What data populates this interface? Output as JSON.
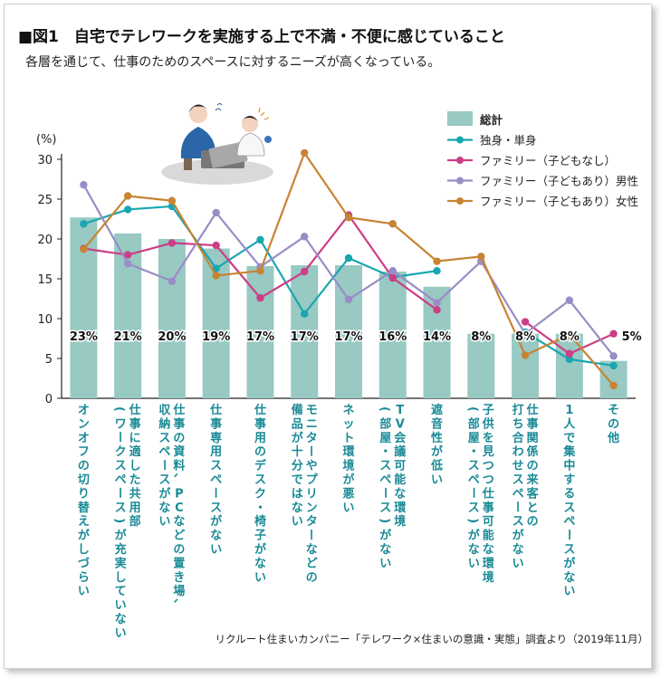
{
  "header": {
    "title": "■図1　自宅でテレワークを実施する上で不満・不便に感じていること",
    "subtitle": "各層を通じて、仕事のためのスペースに対するニーズが高くなっている。",
    "source": "リクルート住まいカンパニー「テレワーク×住まいの意識・実態」調査より（2019年11月）"
  },
  "chart_data": {
    "type": "bar",
    "title": "■図1　自宅でテレワークを実施する上で不満・不便に感じていること",
    "ylabel": "(%)",
    "ylim": [
      0,
      30
    ],
    "yticks": [
      "0",
      "5",
      "10",
      "15",
      "20",
      "25",
      "30"
    ],
    "grid": false,
    "legend_position": "top-right",
    "categories": [
      "オンオフの切り替えがしづらい",
      "仕事に適した共用部\n(ワークスペース)が充実していない",
      "仕事の資料、PCなどの置き場、\n収納スペースがない",
      "仕事専用スペースがない",
      "仕事用のデスク・椅子がない",
      "モニターやプリンターなどの\n備品が十分ではない",
      "ネット環境が悪い",
      "TV会議可能な環境\n(部屋・スペース)がない",
      "遮音性が低い",
      "子供を見つつ仕事可能な環境\n(部屋・スペース)がない",
      "仕事関係の来客との\n打ち合わせスペースがない",
      "1人で集中するスペースがない",
      "その他"
    ],
    "bar_labels": [
      "23%",
      "21%",
      "20%",
      "19%",
      "17%",
      "17%",
      "17%",
      "16%",
      "14%",
      "8%",
      "8%",
      "8%",
      "5%"
    ],
    "series": [
      {
        "name": "総計",
        "kind": "bar",
        "color": "#98c9c3",
        "values": [
          22.7,
          20.7,
          20.0,
          18.8,
          16.6,
          16.7,
          16.7,
          15.9,
          14.0,
          8.1,
          8.1,
          8.1,
          4.7
        ]
      },
      {
        "name": "独身・単身",
        "kind": "line",
        "color": "#19a6b0",
        "values": [
          21.9,
          23.7,
          24.1,
          16.3,
          19.9,
          10.6,
          17.6,
          15.2,
          16.0,
          null,
          8.3,
          4.9,
          4.1
        ]
      },
      {
        "name": "ファミリー（子どもなし）",
        "kind": "line",
        "color": "#cc3e85",
        "values": [
          18.8,
          18.0,
          19.5,
          19.2,
          12.6,
          15.9,
          23.0,
          15.1,
          11.1,
          null,
          9.6,
          5.6,
          8.1
        ]
      },
      {
        "name": "ファミリー（子どもあり）男性",
        "kind": "line",
        "color": "#9a8cc6",
        "values": [
          26.8,
          16.9,
          14.7,
          23.3,
          16.5,
          20.3,
          12.4,
          16.0,
          12.0,
          17.2,
          8.1,
          12.3,
          5.3
        ]
      },
      {
        "name": "ファミリー（子どもあり）女性",
        "kind": "line",
        "color": "#c78433",
        "values": [
          18.7,
          25.4,
          24.8,
          15.4,
          16.0,
          30.8,
          22.7,
          21.9,
          17.2,
          17.8,
          5.4,
          8.0,
          1.6
        ]
      }
    ]
  },
  "colors": {
    "axis": "#222222",
    "category_text": "#1a8a96",
    "bar": "#98c9c3"
  },
  "illustration": {
    "name": "two-people-at-laptop-illustration"
  }
}
